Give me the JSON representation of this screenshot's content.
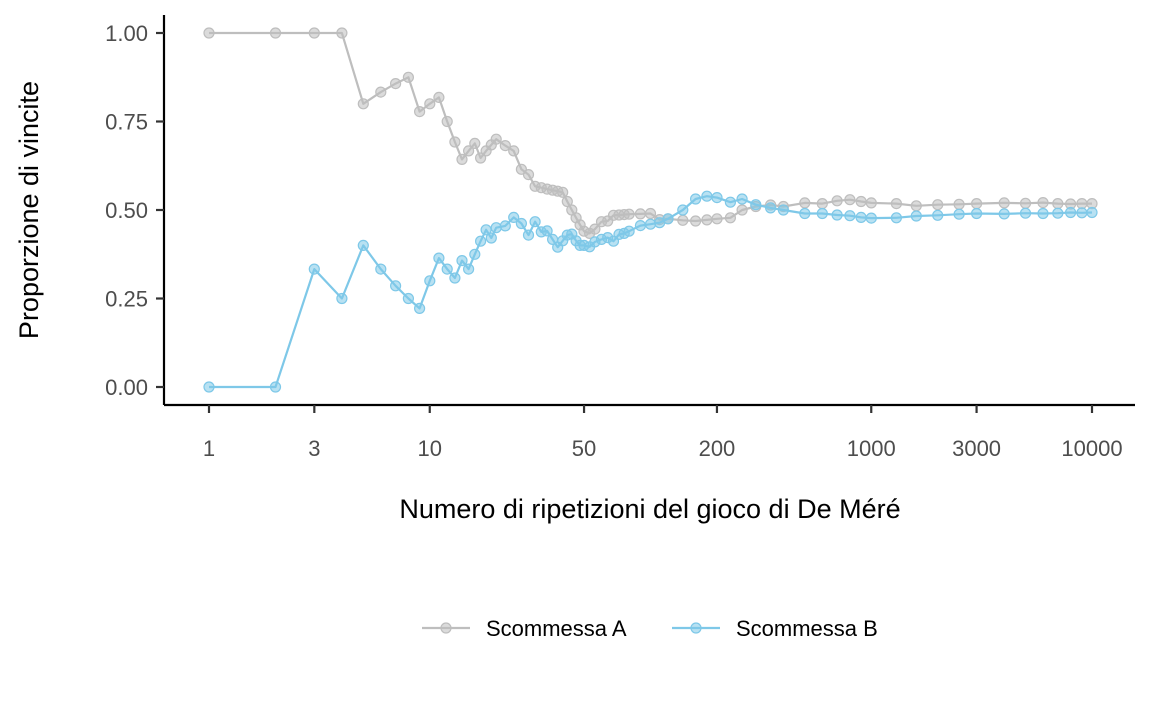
{
  "chart_data": {
    "type": "line",
    "title": "",
    "xlabel": "Numero di ripetizioni del gioco di De Méré",
    "ylabel": "Proporzione di vincite",
    "x_scale": "log10",
    "xlim": [
      1,
      10000
    ],
    "ylim": [
      0,
      1
    ],
    "x_ticks": [
      1,
      3,
      10,
      50,
      200,
      1000,
      3000,
      10000
    ],
    "x_tick_labels": [
      "1",
      "3",
      "10",
      "50",
      "200",
      "1000",
      "3000",
      "10000"
    ],
    "y_ticks": [
      0,
      0.25,
      0.5,
      0.75,
      1
    ],
    "y_tick_labels": [
      "0.00",
      "0.25",
      "0.50",
      "0.75",
      "1.00"
    ],
    "grid": false,
    "legend_position": "bottom",
    "series": [
      {
        "name": "Scommessa A",
        "color": "#bebebe",
        "points": [
          [
            1,
            1.0
          ],
          [
            2,
            1.0
          ],
          [
            3,
            1.0
          ],
          [
            4,
            1.0
          ],
          [
            5,
            0.8
          ],
          [
            6,
            0.833
          ],
          [
            7,
            0.857
          ],
          [
            8,
            0.875
          ],
          [
            9,
            0.778
          ],
          [
            10,
            0.8
          ],
          [
            11,
            0.818
          ],
          [
            12,
            0.75
          ],
          [
            13,
            0.692
          ],
          [
            14,
            0.643
          ],
          [
            15,
            0.667
          ],
          [
            16,
            0.688
          ],
          [
            17,
            0.647
          ],
          [
            18,
            0.667
          ],
          [
            19,
            0.684
          ],
          [
            20,
            0.7
          ],
          [
            22,
            0.682
          ],
          [
            24,
            0.667
          ],
          [
            26,
            0.615
          ],
          [
            28,
            0.6
          ],
          [
            30,
            0.567
          ],
          [
            32,
            0.563
          ],
          [
            34,
            0.559
          ],
          [
            36,
            0.556
          ],
          [
            38,
            0.553
          ],
          [
            40,
            0.55
          ],
          [
            42,
            0.524
          ],
          [
            44,
            0.5
          ],
          [
            46,
            0.478
          ],
          [
            48,
            0.458
          ],
          [
            50,
            0.44
          ],
          [
            53,
            0.434
          ],
          [
            56,
            0.446
          ],
          [
            60,
            0.467
          ],
          [
            64,
            0.469
          ],
          [
            68,
            0.485
          ],
          [
            72,
            0.486
          ],
          [
            76,
            0.487
          ],
          [
            80,
            0.488
          ],
          [
            90,
            0.489
          ],
          [
            100,
            0.49
          ],
          [
            110,
            0.473
          ],
          [
            120,
            0.475
          ],
          [
            140,
            0.471
          ],
          [
            160,
            0.469
          ],
          [
            180,
            0.472
          ],
          [
            200,
            0.475
          ],
          [
            230,
            0.478
          ],
          [
            260,
            0.5
          ],
          [
            300,
            0.51
          ],
          [
            350,
            0.514
          ],
          [
            400,
            0.51
          ],
          [
            500,
            0.52
          ],
          [
            600,
            0.518
          ],
          [
            700,
            0.526
          ],
          [
            800,
            0.529
          ],
          [
            900,
            0.524
          ],
          [
            1000,
            0.52
          ],
          [
            1300,
            0.518
          ],
          [
            1600,
            0.512
          ],
          [
            2000,
            0.515
          ],
          [
            2500,
            0.516
          ],
          [
            3000,
            0.518
          ],
          [
            4000,
            0.52
          ],
          [
            5000,
            0.519
          ],
          [
            6000,
            0.521
          ],
          [
            7000,
            0.518
          ],
          [
            8000,
            0.517
          ],
          [
            9000,
            0.518
          ],
          [
            10000,
            0.518
          ]
        ]
      },
      {
        "name": "Scommessa B",
        "color": "#7ec8e8",
        "points": [
          [
            1,
            0.0
          ],
          [
            2,
            0.0
          ],
          [
            3,
            0.333
          ],
          [
            4,
            0.25
          ],
          [
            5,
            0.4
          ],
          [
            6,
            0.333
          ],
          [
            7,
            0.286
          ],
          [
            8,
            0.25
          ],
          [
            9,
            0.222
          ],
          [
            10,
            0.3
          ],
          [
            11,
            0.364
          ],
          [
            12,
            0.333
          ],
          [
            13,
            0.308
          ],
          [
            14,
            0.357
          ],
          [
            15,
            0.333
          ],
          [
            16,
            0.375
          ],
          [
            17,
            0.412
          ],
          [
            18,
            0.444
          ],
          [
            19,
            0.421
          ],
          [
            20,
            0.45
          ],
          [
            22,
            0.455
          ],
          [
            24,
            0.479
          ],
          [
            26,
            0.462
          ],
          [
            28,
            0.429
          ],
          [
            30,
            0.467
          ],
          [
            32,
            0.438
          ],
          [
            34,
            0.441
          ],
          [
            36,
            0.417
          ],
          [
            38,
            0.395
          ],
          [
            40,
            0.413
          ],
          [
            42,
            0.429
          ],
          [
            44,
            0.432
          ],
          [
            46,
            0.413
          ],
          [
            48,
            0.4
          ],
          [
            50,
            0.4
          ],
          [
            53,
            0.396
          ],
          [
            56,
            0.41
          ],
          [
            60,
            0.417
          ],
          [
            64,
            0.422
          ],
          [
            68,
            0.412
          ],
          [
            72,
            0.431
          ],
          [
            76,
            0.434
          ],
          [
            80,
            0.44
          ],
          [
            90,
            0.456
          ],
          [
            100,
            0.46
          ],
          [
            110,
            0.464
          ],
          [
            120,
            0.475
          ],
          [
            140,
            0.5
          ],
          [
            160,
            0.531
          ],
          [
            180,
            0.539
          ],
          [
            200,
            0.535
          ],
          [
            230,
            0.522
          ],
          [
            260,
            0.531
          ],
          [
            300,
            0.515
          ],
          [
            350,
            0.506
          ],
          [
            400,
            0.5
          ],
          [
            500,
            0.49
          ],
          [
            600,
            0.49
          ],
          [
            700,
            0.486
          ],
          [
            800,
            0.484
          ],
          [
            900,
            0.479
          ],
          [
            1000,
            0.477
          ],
          [
            1300,
            0.478
          ],
          [
            1600,
            0.483
          ],
          [
            2000,
            0.485
          ],
          [
            2500,
            0.488
          ],
          [
            3000,
            0.49
          ],
          [
            4000,
            0.489
          ],
          [
            5000,
            0.491
          ],
          [
            6000,
            0.49
          ],
          [
            7000,
            0.491
          ],
          [
            8000,
            0.493
          ],
          [
            9000,
            0.492
          ],
          [
            10000,
            0.493
          ]
        ]
      }
    ]
  }
}
